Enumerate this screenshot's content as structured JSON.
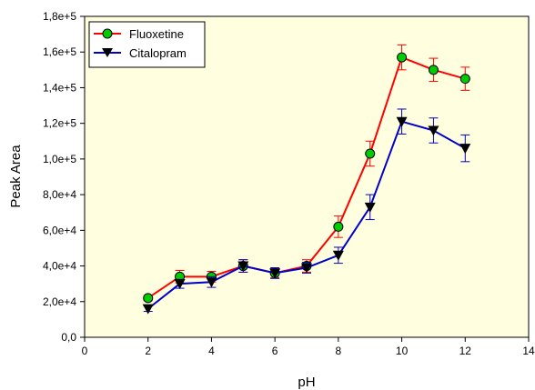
{
  "chart_data": {
    "type": "line",
    "xlabel": "pH",
    "ylabel": "Peak Area",
    "xlim": [
      0,
      14
    ],
    "ylim": [
      0,
      180000
    ],
    "xticks": [
      0,
      2,
      4,
      6,
      8,
      10,
      12,
      14
    ],
    "xtick_labels": [
      "0",
      "2",
      "4",
      "6",
      "8",
      "10",
      "12",
      "14"
    ],
    "yticks": [
      0,
      20000,
      40000,
      60000,
      80000,
      100000,
      120000,
      140000,
      160000,
      180000
    ],
    "ytick_labels": [
      "0,0",
      "2,0e+4",
      "4,0e+4",
      "6,0e+4",
      "8,0e+4",
      "1,0e+5",
      "1,2e+5",
      "1,4e+5",
      "1,6e+5",
      "1,8e+5"
    ],
    "grid": false,
    "legend_position": "top-left",
    "plot_background": "#ffffe0",
    "series": [
      {
        "name": "Fluoxetine",
        "color": "#ff0000",
        "marker": "circle",
        "marker_color": "#00cc00",
        "x": [
          2,
          3,
          4,
          5,
          6,
          7,
          8,
          9,
          10,
          11,
          12
        ],
        "y": [
          22000,
          34000,
          34000,
          40000,
          36000,
          40000,
          62000,
          103000,
          157000,
          150000,
          145000
        ],
        "error": [
          1500,
          3500,
          3000,
          3500,
          2500,
          3500,
          6000,
          7000,
          7000,
          6500,
          6500
        ]
      },
      {
        "name": "Citalopram",
        "color": "#0000cc",
        "marker": "triangle-down",
        "marker_color": "#000000",
        "x": [
          2,
          3,
          4,
          5,
          6,
          7,
          8,
          9,
          10,
          11,
          12
        ],
        "y": [
          16000,
          30000,
          31000,
          40000,
          36000,
          39000,
          46000,
          73000,
          121000,
          116000,
          106000
        ],
        "error": [
          1500,
          2500,
          3000,
          3500,
          3000,
          3000,
          4500,
          7000,
          7000,
          7000,
          7500
        ]
      }
    ]
  }
}
